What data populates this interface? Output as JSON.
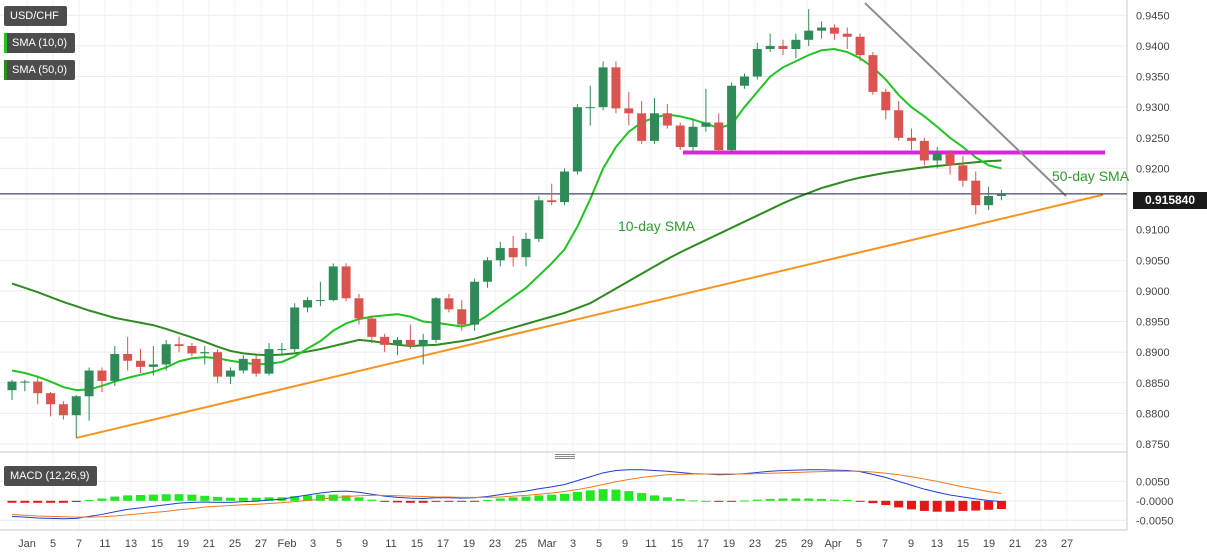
{
  "legend": {
    "symbol": "USD/CHF",
    "sma10": "SMA (10,0)",
    "sma50": "SMA (50,0)",
    "macd": "MACD (12,26,9)"
  },
  "price_tag": "0.915840",
  "colors": {
    "up": "#2e8b57",
    "down": "#d9534f",
    "sma10": "#22c322",
    "sma50": "#2e8b20",
    "support": "#f5951f",
    "resistance": "#e020e0",
    "trendline": "#8c8c8c",
    "macd_line": "#1f3fd1",
    "signal_line": "#f07a1a",
    "hist_pos": "#22e822",
    "hist_neg": "#e81616"
  },
  "chart_data": {
    "type": "candlestick",
    "title": "USD/CHF",
    "y_ticks": [
      "0.9450",
      "0.9400",
      "0.9350",
      "0.9300",
      "0.9250",
      "0.9200",
      "0.9150",
      "0.9100",
      "0.9050",
      "0.9000",
      "0.8950",
      "0.8900",
      "0.8850",
      "0.8800",
      "0.8750"
    ],
    "ylim": [
      0.8737,
      0.9475
    ],
    "x_ticks": [
      "Jan",
      "5",
      "7",
      "11",
      "13",
      "15",
      "19",
      "21",
      "25",
      "27",
      "Feb",
      "3",
      "5",
      "9",
      "11",
      "15",
      "17",
      "19",
      "23",
      "25",
      "Mar",
      "3",
      "5",
      "9",
      "11",
      "15",
      "17",
      "19",
      "23",
      "25",
      "29",
      "Apr",
      "5",
      "7",
      "9",
      "13",
      "15",
      "19",
      "21",
      "23",
      "27"
    ],
    "macd_y_ticks": [
      "0.0050",
      "-0.0000",
      "-0.0050"
    ],
    "annotations": [
      "10-day SMA",
      "50-day SMA"
    ],
    "candles": [
      [
        0.8838,
        0.8855,
        0.8822,
        0.8852
      ],
      [
        0.8852,
        0.8855,
        0.8836,
        0.8852
      ],
      [
        0.8852,
        0.886,
        0.8815,
        0.8833
      ],
      [
        0.8833,
        0.8835,
        0.8795,
        0.8815
      ],
      [
        0.8815,
        0.882,
        0.879,
        0.8797
      ],
      [
        0.8797,
        0.883,
        0.876,
        0.8828
      ],
      [
        0.8828,
        0.8875,
        0.8788,
        0.887
      ],
      [
        0.887,
        0.8875,
        0.8835,
        0.8853
      ],
      [
        0.8853,
        0.891,
        0.8845,
        0.8897
      ],
      [
        0.8897,
        0.8925,
        0.887,
        0.8886
      ],
      [
        0.8886,
        0.8905,
        0.8866,
        0.8876
      ],
      [
        0.8876,
        0.891,
        0.8862,
        0.888
      ],
      [
        0.888,
        0.892,
        0.887,
        0.8913
      ],
      [
        0.8913,
        0.8925,
        0.89,
        0.891
      ],
      [
        0.891,
        0.8915,
        0.8893,
        0.8898
      ],
      [
        0.8898,
        0.891,
        0.888,
        0.89
      ],
      [
        0.89,
        0.8905,
        0.885,
        0.886
      ],
      [
        0.886,
        0.8875,
        0.8848,
        0.887
      ],
      [
        0.887,
        0.8895,
        0.8865,
        0.8889
      ],
      [
        0.8889,
        0.8895,
        0.886,
        0.8865
      ],
      [
        0.8865,
        0.8915,
        0.8862,
        0.8905
      ],
      [
        0.8905,
        0.8915,
        0.8895,
        0.8905
      ],
      [
        0.8905,
        0.898,
        0.89,
        0.8973
      ],
      [
        0.8973,
        0.899,
        0.8965,
        0.8985
      ],
      [
        0.8985,
        0.9015,
        0.8975,
        0.8985
      ],
      [
        0.8985,
        0.9045,
        0.8983,
        0.904
      ],
      [
        0.904,
        0.9045,
        0.8983,
        0.8988
      ],
      [
        0.8988,
        0.8995,
        0.8945,
        0.8955
      ],
      [
        0.8955,
        0.896,
        0.8915,
        0.8925
      ],
      [
        0.8925,
        0.893,
        0.89,
        0.8912
      ],
      [
        0.8912,
        0.8925,
        0.8895,
        0.892
      ],
      [
        0.892,
        0.8945,
        0.8905,
        0.891
      ],
      [
        0.891,
        0.893,
        0.888,
        0.892
      ],
      [
        0.892,
        0.899,
        0.8915,
        0.8988
      ],
      [
        0.8988,
        0.8995,
        0.8965,
        0.897
      ],
      [
        0.897,
        0.8985,
        0.8935,
        0.8945
      ],
      [
        0.8945,
        0.902,
        0.8935,
        0.9015
      ],
      [
        0.9015,
        0.9055,
        0.9005,
        0.905
      ],
      [
        0.905,
        0.908,
        0.904,
        0.907
      ],
      [
        0.907,
        0.909,
        0.904,
        0.9055
      ],
      [
        0.9055,
        0.9095,
        0.904,
        0.9085
      ],
      [
        0.9085,
        0.9155,
        0.908,
        0.9148
      ],
      [
        0.9148,
        0.9175,
        0.914,
        0.9145
      ],
      [
        0.9145,
        0.92,
        0.914,
        0.9195
      ],
      [
        0.9195,
        0.9305,
        0.919,
        0.93
      ],
      [
        0.93,
        0.9335,
        0.927,
        0.93
      ],
      [
        0.93,
        0.9375,
        0.9295,
        0.9365
      ],
      [
        0.9365,
        0.9375,
        0.929,
        0.9298
      ],
      [
        0.9298,
        0.9325,
        0.927,
        0.929
      ],
      [
        0.929,
        0.931,
        0.924,
        0.9245
      ],
      [
        0.9245,
        0.9315,
        0.924,
        0.929
      ],
      [
        0.929,
        0.9305,
        0.9265,
        0.927
      ],
      [
        0.927,
        0.9275,
        0.923,
        0.9235
      ],
      [
        0.9235,
        0.928,
        0.9225,
        0.9268
      ],
      [
        0.9268,
        0.933,
        0.926,
        0.9275
      ],
      [
        0.9275,
        0.929,
        0.9225,
        0.923
      ],
      [
        0.923,
        0.934,
        0.9225,
        0.9335
      ],
      [
        0.9335,
        0.9355,
        0.933,
        0.935
      ],
      [
        0.935,
        0.9405,
        0.9345,
        0.9395
      ],
      [
        0.9395,
        0.942,
        0.939,
        0.94
      ],
      [
        0.94,
        0.941,
        0.9385,
        0.9395
      ],
      [
        0.9395,
        0.942,
        0.938,
        0.941
      ],
      [
        0.941,
        0.946,
        0.94,
        0.9425
      ],
      [
        0.9425,
        0.944,
        0.9412,
        0.943
      ],
      [
        0.943,
        0.9435,
        0.941,
        0.942
      ],
      [
        0.942,
        0.943,
        0.9395,
        0.9415
      ],
      [
        0.9415,
        0.942,
        0.9375,
        0.9385
      ],
      [
        0.9385,
        0.939,
        0.932,
        0.9325
      ],
      [
        0.9325,
        0.933,
        0.928,
        0.9295
      ],
      [
        0.9295,
        0.931,
        0.9245,
        0.925
      ],
      [
        0.925,
        0.9265,
        0.923,
        0.9245
      ],
      [
        0.9245,
        0.925,
        0.9205,
        0.9213
      ],
      [
        0.9213,
        0.9235,
        0.92,
        0.9225
      ],
      [
        0.9225,
        0.923,
        0.919,
        0.9205
      ],
      [
        0.9205,
        0.922,
        0.917,
        0.918
      ],
      [
        0.918,
        0.9195,
        0.9125,
        0.914
      ],
      [
        0.914,
        0.917,
        0.9132,
        0.9155
      ],
      [
        0.9155,
        0.9165,
        0.9148,
        0.9158
      ]
    ],
    "sma10": [
      0.887,
      0.8866,
      0.886,
      0.8852,
      0.8843,
      0.8838,
      0.8839,
      0.8845,
      0.8852,
      0.8858,
      0.8863,
      0.8868,
      0.8875,
      0.8885,
      0.889,
      0.8892,
      0.889,
      0.8886,
      0.8883,
      0.888,
      0.8881,
      0.8884,
      0.8893,
      0.8906,
      0.8918,
      0.8935,
      0.8947,
      0.8954,
      0.8958,
      0.896,
      0.8962,
      0.8958,
      0.895,
      0.8948,
      0.8945,
      0.8942,
      0.8947,
      0.896,
      0.8975,
      0.899,
      0.9005,
      0.9025,
      0.9045,
      0.9068,
      0.9105,
      0.915,
      0.92,
      0.9235,
      0.926,
      0.9275,
      0.9283,
      0.9288,
      0.9285,
      0.928,
      0.9273,
      0.9266,
      0.9272,
      0.93,
      0.9325,
      0.935,
      0.9365,
      0.9375,
      0.9385,
      0.9393,
      0.9395,
      0.939,
      0.938,
      0.9365,
      0.9345,
      0.932,
      0.93,
      0.9285,
      0.9268,
      0.925,
      0.9235,
      0.9218,
      0.9205,
      0.92
    ],
    "sma50": [
      0.9012,
      0.9005,
      0.8998,
      0.899,
      0.8982,
      0.8975,
      0.8968,
      0.8962,
      0.8956,
      0.8952,
      0.8948,
      0.8944,
      0.8938,
      0.8931,
      0.8924,
      0.8917,
      0.8909,
      0.8902,
      0.8898,
      0.8896,
      0.8895,
      0.8896,
      0.8898,
      0.8901,
      0.8905,
      0.891,
      0.8915,
      0.892,
      0.8918,
      0.8915,
      0.8912,
      0.891,
      0.8911,
      0.8912,
      0.8915,
      0.8918,
      0.8922,
      0.8928,
      0.8934,
      0.894,
      0.8946,
      0.8952,
      0.8958,
      0.8964,
      0.8972,
      0.898,
      0.8992,
      0.9004,
      0.9016,
      0.9028,
      0.904,
      0.9052,
      0.9063,
      0.9073,
      0.9083,
      0.9093,
      0.9103,
      0.9113,
      0.9123,
      0.9133,
      0.9143,
      0.9152,
      0.916,
      0.9168,
      0.9174,
      0.918,
      0.9185,
      0.9189,
      0.9193,
      0.9196,
      0.9199,
      0.9202,
      0.9204,
      0.9206,
      0.9208,
      0.921,
      0.9212,
      0.9213
    ],
    "support_line": [
      0.876,
      0.9157
    ],
    "resistance_level": 0.9226,
    "downtrend_line": [
      0.947,
      0.9155
    ],
    "macd": [
      -0.004,
      -0.0042,
      -0.0044,
      -0.0045,
      -0.0046,
      -0.0045,
      -0.004,
      -0.0035,
      -0.0028,
      -0.0022,
      -0.0018,
      -0.0014,
      -0.001,
      -0.0006,
      -0.0004,
      -0.0003,
      -0.0004,
      -0.0004,
      -0.0002,
      -0.0001,
      0.0002,
      0.0004,
      0.001,
      0.0015,
      0.002,
      0.0024,
      0.0025,
      0.0022,
      0.0017,
      0.0012,
      0.0009,
      0.0007,
      0.0006,
      0.0008,
      0.0008,
      0.0007,
      0.0008,
      0.0011,
      0.0016,
      0.0021,
      0.0025,
      0.0031,
      0.0036,
      0.0042,
      0.0052,
      0.0062,
      0.0072,
      0.0078,
      0.008,
      0.008,
      0.0078,
      0.0076,
      0.0073,
      0.007,
      0.0069,
      0.0067,
      0.0068,
      0.007,
      0.0073,
      0.0076,
      0.0078,
      0.0079,
      0.008,
      0.008,
      0.0079,
      0.0078,
      0.0075,
      0.0068,
      0.006,
      0.005,
      0.004,
      0.003,
      0.0022,
      0.0015,
      0.001,
      0.0005,
      0.0001,
      -0.0002
    ],
    "signal": [
      -0.0035,
      -0.0037,
      -0.0039,
      -0.004,
      -0.0041,
      -0.0042,
      -0.0042,
      -0.0041,
      -0.0039,
      -0.0036,
      -0.0033,
      -0.003,
      -0.0027,
      -0.0023,
      -0.002,
      -0.0016,
      -0.0014,
      -0.0012,
      -0.001,
      -0.0009,
      -0.0007,
      -0.0005,
      -0.0002,
      0.0001,
      0.0004,
      0.0008,
      0.0011,
      0.0013,
      0.0014,
      0.0014,
      0.0013,
      0.0012,
      0.0011,
      0.001,
      0.001,
      0.0009,
      0.0009,
      0.0009,
      0.001,
      0.0012,
      0.0014,
      0.0017,
      0.002,
      0.0024,
      0.0029,
      0.0035,
      0.0042,
      0.0049,
      0.0055,
      0.006,
      0.0064,
      0.0067,
      0.0068,
      0.0069,
      0.0069,
      0.0069,
      0.0069,
      0.0069,
      0.007,
      0.0071,
      0.0072,
      0.0073,
      0.0074,
      0.0075,
      0.0076,
      0.0076,
      0.0076,
      0.0074,
      0.0071,
      0.0067,
      0.0062,
      0.0056,
      0.005,
      0.0043,
      0.0036,
      0.003,
      0.0024,
      0.0019
    ]
  }
}
